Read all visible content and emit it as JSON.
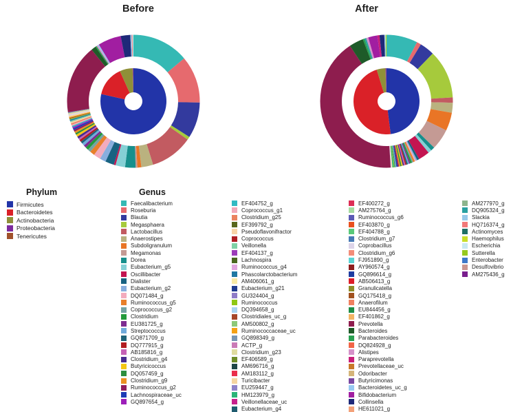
{
  "legend": {
    "phylum_heading": "Phylum",
    "genus_heading": "Genus",
    "phylum": [
      {
        "label": "Firmicutes",
        "color": "#2234a8"
      },
      {
        "label": "Bacteroidetes",
        "color": "#da2128"
      },
      {
        "label": "Actinobacteria",
        "color": "#8f9038"
      },
      {
        "label": "Proteobacteria",
        "color": "#7d2b9e"
      },
      {
        "label": "Tenericutes",
        "color": "#a0512b"
      }
    ],
    "genus_columns": [
      [
        {
          "label": "Faecalibacterium",
          "color": "#35b9b4"
        },
        {
          "label": "Roseburia",
          "color": "#e66a6e"
        },
        {
          "label": "Blautia",
          "color": "#333a9e"
        },
        {
          "label": "Megasphaera",
          "color": "#a6ca3c"
        },
        {
          "label": "Lactobacillus",
          "color": "#c25b61"
        },
        {
          "label": "Anaerostipes",
          "color": "#bab27f"
        },
        {
          "label": "Subdoligranulum",
          "color": "#e97526"
        },
        {
          "label": "Megamonas",
          "color": "#c49a94"
        },
        {
          "label": "Dorea",
          "color": "#178f8c"
        },
        {
          "label": "Eubacterium_g5",
          "color": "#85d0d5"
        },
        {
          "label": "Oscillibacter",
          "color": "#c31551"
        },
        {
          "label": "Dialister",
          "color": "#186281"
        },
        {
          "label": "Eubacterium_g2",
          "color": "#88aede"
        },
        {
          "label": "DQ071484_g",
          "color": "#f3abbd"
        },
        {
          "label": "Ruminococcus_g5",
          "color": "#e87f2a"
        },
        {
          "label": "Coprococcus_g2",
          "color": "#74a3a3"
        },
        {
          "label": "Clostridium",
          "color": "#239a3b"
        },
        {
          "label": "EU381725_g",
          "color": "#7d2c91"
        },
        {
          "label": "Streptococcus",
          "color": "#70aadb"
        },
        {
          "label": "GQ871709_g",
          "color": "#1e6379"
        },
        {
          "label": "DQ777915_g",
          "color": "#b11d22"
        },
        {
          "label": "AB185816_g",
          "color": "#c662b6"
        },
        {
          "label": "Clostridium_g4",
          "color": "#482c90"
        },
        {
          "label": "Butyricicoccus",
          "color": "#f4c715"
        },
        {
          "label": "DQ057459_g",
          "color": "#2d8f3f"
        },
        {
          "label": "Clostridium_g9",
          "color": "#eb9122"
        },
        {
          "label": "Ruminococcus_g2",
          "color": "#8f1d5d"
        },
        {
          "label": "Lachnospiraceae_uc",
          "color": "#1d3bb6"
        },
        {
          "label": "GQ897654_g",
          "color": "#9d1fb9"
        }
      ],
      [
        {
          "label": "EF404752_g",
          "color": "#31bac2"
        },
        {
          "label": "Coprococcus_g1",
          "color": "#f1a9b9"
        },
        {
          "label": "Clostridium_g25",
          "color": "#ea825f"
        },
        {
          "label": "EF399792_g",
          "color": "#59671d"
        },
        {
          "label": "Pseudoflavonifractor",
          "color": "#f8d4a7"
        },
        {
          "label": "Coprococcus",
          "color": "#af1d23"
        },
        {
          "label": "Veillonella",
          "color": "#80d1a6"
        },
        {
          "label": "EF404137_g",
          "color": "#9c3cb9"
        },
        {
          "label": "Lachnospira",
          "color": "#4a671f"
        },
        {
          "label": "Ruminococcus_g4",
          "color": "#e0a6de"
        },
        {
          "label": "Phascolarctobacterium",
          "color": "#1f78a2"
        },
        {
          "label": "AM406061_g",
          "color": "#f7e9a5"
        },
        {
          "label": "Eubacterium_g21",
          "color": "#1f3b8f"
        },
        {
          "label": "GU324404_g",
          "color": "#8f7cc7"
        },
        {
          "label": "Ruminococcus",
          "color": "#8fc714"
        },
        {
          "label": "DQ394658_g",
          "color": "#a9d4f1"
        },
        {
          "label": "Clostridiales_uc_g",
          "color": "#a64628"
        },
        {
          "label": "AM500802_g",
          "color": "#8dc979"
        },
        {
          "label": "Ruminococcaceae_uc",
          "color": "#f4a114"
        },
        {
          "label": "GQ898349_g",
          "color": "#7896b4"
        },
        {
          "label": "ACTP_g",
          "color": "#ca7bb6"
        },
        {
          "label": "Clostridium_g23",
          "color": "#e0dc9f"
        },
        {
          "label": "EF406589_g",
          "color": "#6e8d27"
        },
        {
          "label": "AM696716_g",
          "color": "#1e4646"
        },
        {
          "label": "AM183112_g",
          "color": "#ea2d4b"
        },
        {
          "label": "Turicibacter",
          "color": "#f4d5a1"
        },
        {
          "label": "EU259447_g",
          "color": "#8d83c9"
        },
        {
          "label": "HM123979_g",
          "color": "#2bb478"
        },
        {
          "label": "Veillonellaceae_uc",
          "color": "#c81f8d"
        },
        {
          "label": "Eubacterium_g4",
          "color": "#1f5b6f"
        }
      ],
      [
        {
          "label": "EF400272_g",
          "color": "#dd2e56"
        },
        {
          "label": "AM275764_g",
          "color": "#a6dca1"
        },
        {
          "label": "Ruminococcus_g6",
          "color": "#5b5ab4"
        },
        {
          "label": "EF403870_g",
          "color": "#e9501e"
        },
        {
          "label": "EF404788_g",
          "color": "#59c979"
        },
        {
          "label": "Clostridium_g7",
          "color": "#4779b5"
        },
        {
          "label": "Coprobacillus",
          "color": "#ddd4e9"
        },
        {
          "label": "Clostridium_g6",
          "color": "#f38d79"
        },
        {
          "label": "FJ951890_g",
          "color": "#5bd4d4"
        },
        {
          "label": "AY960574_g",
          "color": "#8d1e1e"
        },
        {
          "label": "GQ896614_g",
          "color": "#1e3ca1"
        },
        {
          "label": "AB506413_g",
          "color": "#dd1e29"
        },
        {
          "label": "Granulicatella",
          "color": "#8d8d29"
        },
        {
          "label": "GQ175418_g",
          "color": "#a1511e"
        },
        {
          "label": "Anaerofilum",
          "color": "#f18161"
        },
        {
          "label": "EU844456_g",
          "color": "#1e8d47"
        },
        {
          "label": "EF401862_g",
          "color": "#f3b565"
        },
        {
          "label": "Prevotella",
          "color": "#8e1d4e"
        },
        {
          "label": "Bacteroides",
          "color": "#1e5b29"
        },
        {
          "label": "Parabacteroides",
          "color": "#29a151"
        },
        {
          "label": "DQ824928_g",
          "color": "#f16547"
        },
        {
          "label": "Alistipes",
          "color": "#d591c9"
        },
        {
          "label": "Paraprevotella",
          "color": "#c91e79"
        },
        {
          "label": "Prevotellaceae_uc",
          "color": "#c97929"
        },
        {
          "label": "Odoribacter",
          "color": "#d5b579"
        },
        {
          "label": "Butyricimonas",
          "color": "#7947a1"
        },
        {
          "label": "Bacteroidetes_uc_g",
          "color": "#97c9f1"
        },
        {
          "label": "Bifidobacterium",
          "color": "#a11ea1"
        },
        {
          "label": "Collinsella",
          "color": "#1e2979"
        },
        {
          "label": "HE611021_g",
          "color": "#f3a179"
        }
      ],
      [
        {
          "label": "AM277970_g",
          "color": "#8db58d"
        },
        {
          "label": "DQ905324_g",
          "color": "#29a1a1"
        },
        {
          "label": "Slackia",
          "color": "#97c9e9"
        },
        {
          "label": "HQ716374_g",
          "color": "#f17979"
        },
        {
          "label": "Actinomyces",
          "color": "#1e6f65"
        },
        {
          "label": "Haemophilus",
          "color": "#c9dd29"
        },
        {
          "label": "Escherichia",
          "color": "#c9e9f1"
        },
        {
          "label": "Sutterella",
          "color": "#97c91e"
        },
        {
          "label": "Enterobacter",
          "color": "#3d79c9"
        },
        {
          "label": "Desulfovibrio",
          "color": "#c99791"
        },
        {
          "label": "AM275436_g",
          "color": "#791e8d"
        }
      ]
    ]
  },
  "chart_data": {
    "type": "sunburst",
    "description": "Nested donut charts: inner ring = phylum relative abundance, outer ring = genus relative abundance (values are estimated percent)",
    "inner_ring_label": "Phylum",
    "outer_ring_label": "Genus",
    "charts": [
      {
        "title": "Before",
        "inner": [
          {
            "name": "Firmicutes",
            "value": 78.5
          },
          {
            "name": "Bacteroidetes",
            "value": 14.8
          },
          {
            "name": "Actinobacteria",
            "value": 6.3
          },
          {
            "name": "Proteobacteria",
            "value": 0.3
          },
          {
            "name": "Tenericutes",
            "value": 0.1
          }
        ],
        "outer": [
          {
            "name": "Faecalibacterium",
            "value": 13.0
          },
          {
            "name": "Roseburia",
            "value": 10.8
          },
          {
            "name": "Blautia",
            "value": 8.2
          },
          {
            "name": "Megasphaera",
            "value": 0.7
          },
          {
            "name": "Lactobacillus",
            "value": 9.8
          },
          {
            "name": "Anaerostipes",
            "value": 2.7
          },
          {
            "name": "Subdoligranulum",
            "value": 0.9
          },
          {
            "name": "Megamonas",
            "value": 0.4
          },
          {
            "name": "Dorea",
            "value": 2.4
          },
          {
            "name": "Eubacterium_g5",
            "value": 2.2
          },
          {
            "name": "Oscillibacter",
            "value": 0.4
          },
          {
            "name": "Dialister",
            "value": 2.0
          },
          {
            "name": "Eubacterium_g2",
            "value": 1.4
          },
          {
            "name": "DQ071484_g",
            "value": 1.6
          },
          {
            "name": "Ruminococcus_g5",
            "value": 1.1
          },
          {
            "name": "Coprococcus_g2",
            "value": 0.7
          },
          {
            "name": "Clostridium",
            "value": 0.7
          },
          {
            "name": "EU381725_g",
            "value": 0.6
          },
          {
            "name": "Streptococcus",
            "value": 0.6
          },
          {
            "name": "GQ871709_g",
            "value": 0.5
          },
          {
            "name": "DQ777915_g",
            "value": 0.5
          },
          {
            "name": "AB185816_g",
            "value": 0.4
          },
          {
            "name": "Clostridium_g4",
            "value": 0.5
          },
          {
            "name": "Butyricicoccus",
            "value": 0.5
          },
          {
            "name": "DQ057459_g",
            "value": 0.4
          },
          {
            "name": "Clostridium_g9",
            "value": 0.4
          },
          {
            "name": "Ruminococcus_g2",
            "value": 0.4
          },
          {
            "name": "Lachnospiraceae_uc",
            "value": 0.4
          },
          {
            "name": "GQ897654_g",
            "value": 0.3
          },
          {
            "name": "EF404752_g",
            "value": 0.3
          },
          {
            "name": "Coprococcus_g1",
            "value": 0.3
          },
          {
            "name": "Clostridium_g25",
            "value": 0.3
          },
          {
            "name": "Pseudoflavonifractor",
            "value": 0.3
          },
          {
            "name": "Veillonella",
            "value": 0.3
          },
          {
            "name": "Phascolarctobacterium",
            "value": 0.3
          },
          {
            "name": "Ruminococcus",
            "value": 0.2
          },
          {
            "name": "Clostridiales_uc_g",
            "value": 0.2
          },
          {
            "name": "Ruminococcaceae_uc",
            "value": 0.2
          },
          {
            "name": "Turicibacter",
            "value": 0.3
          },
          {
            "name": "Coprobacillus",
            "value": 0.3
          },
          {
            "name": "Clostridium_g23",
            "value": 0.3
          },
          {
            "name": "GQ898349_g",
            "value": 0.2
          },
          {
            "name": "Prevotella",
            "value": 15.8
          },
          {
            "name": "Bacteroides",
            "value": 1.1
          },
          {
            "name": "Parabacteroides",
            "value": 0.3
          },
          {
            "name": "Alistipes",
            "value": 0.3
          },
          {
            "name": "Bacteroidetes_uc_g",
            "value": 0.3
          },
          {
            "name": "Bifidobacterium",
            "value": 5.3
          },
          {
            "name": "Collinsella",
            "value": 2.2
          },
          {
            "name": "Slackia",
            "value": 0.3
          },
          {
            "name": "HQ716374_g",
            "value": 0.2
          },
          {
            "name": "Escherichia",
            "value": 0.2
          }
        ]
      },
      {
        "title": "After",
        "inner": [
          {
            "name": "Firmicutes",
            "value": 48.0
          },
          {
            "name": "Bacteroidetes",
            "value": 47.2
          },
          {
            "name": "Actinobacteria",
            "value": 4.3
          },
          {
            "name": "Proteobacteria",
            "value": 0.4
          },
          {
            "name": "Tenericutes",
            "value": 0.1
          }
        ],
        "outer": [
          {
            "name": "Faecalibacterium",
            "value": 7.2
          },
          {
            "name": "Roseburia",
            "value": 1.0
          },
          {
            "name": "Blautia",
            "value": 3.4
          },
          {
            "name": "Megasphaera",
            "value": 11.2
          },
          {
            "name": "Lactobacillus",
            "value": 1.2
          },
          {
            "name": "Anaerostipes",
            "value": 2.3
          },
          {
            "name": "Subdoligranulum",
            "value": 4.2
          },
          {
            "name": "Megamonas",
            "value": 4.8
          },
          {
            "name": "Dorea",
            "value": 0.9
          },
          {
            "name": "Eubacterium_g5",
            "value": 0.8
          },
          {
            "name": "Oscillibacter",
            "value": 2.6
          },
          {
            "name": "Dialister",
            "value": 0.5
          },
          {
            "name": "Eubacterium_g2",
            "value": 0.3
          },
          {
            "name": "DQ071484_g",
            "value": 0.3
          },
          {
            "name": "Ruminococcus_g5",
            "value": 0.4
          },
          {
            "name": "Coprococcus_g2",
            "value": 0.3
          },
          {
            "name": "Clostridium",
            "value": 0.4
          },
          {
            "name": "EU381725_g",
            "value": 0.3
          },
          {
            "name": "Streptococcus",
            "value": 0.3
          },
          {
            "name": "GQ871709_g",
            "value": 0.3
          },
          {
            "name": "DQ777915_g",
            "value": 0.3
          },
          {
            "name": "AB185816_g",
            "value": 0.3
          },
          {
            "name": "Clostridium_g4",
            "value": 0.3
          },
          {
            "name": "Butyricicoccus",
            "value": 0.3
          },
          {
            "name": "DQ057459_g",
            "value": 0.3
          },
          {
            "name": "Clostridium_g9",
            "value": 0.3
          },
          {
            "name": "Ruminococcus_g2",
            "value": 0.3
          },
          {
            "name": "Lachnospiraceae_uc",
            "value": 0.3
          },
          {
            "name": "Veillonella",
            "value": 0.2
          },
          {
            "name": "Phascolarctobacterium",
            "value": 0.2
          },
          {
            "name": "Ruminococcus",
            "value": 0.2
          },
          {
            "name": "HM123979_g",
            "value": 0.3
          },
          {
            "name": "Turicibacter",
            "value": 0.2
          },
          {
            "name": "Coprobacillus",
            "value": 0.2
          },
          {
            "name": "Prevotella",
            "value": 39.5
          },
          {
            "name": "Bacteroides",
            "value": 3.3
          },
          {
            "name": "Parabacteroides",
            "value": 0.4
          },
          {
            "name": "DQ905324_g",
            "value": 0.4
          },
          {
            "name": "Alistipes",
            "value": 0.5
          },
          {
            "name": "Bifidobacterium",
            "value": 2.1
          },
          {
            "name": "Paraprevotella",
            "value": 0.5
          },
          {
            "name": "Collinsella",
            "value": 1.1
          },
          {
            "name": "Slackia",
            "value": 0.3
          },
          {
            "name": "Haemophilus",
            "value": 0.2
          }
        ]
      }
    ]
  }
}
